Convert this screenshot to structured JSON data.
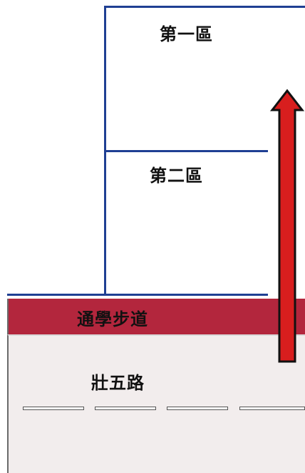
{
  "zones": {
    "zone1_label": "第一區",
    "zone2_label": "第二區"
  },
  "walkway": {
    "label": "通學步道",
    "color": "#b3263d"
  },
  "road": {
    "label": "壯五路",
    "background": "#f2eded"
  },
  "colors": {
    "zone_border": "#1f3f93",
    "arrow_fill": "#d81e1e",
    "arrow_outline": "#111111"
  },
  "icons": {
    "direction": "up-arrow-icon"
  }
}
